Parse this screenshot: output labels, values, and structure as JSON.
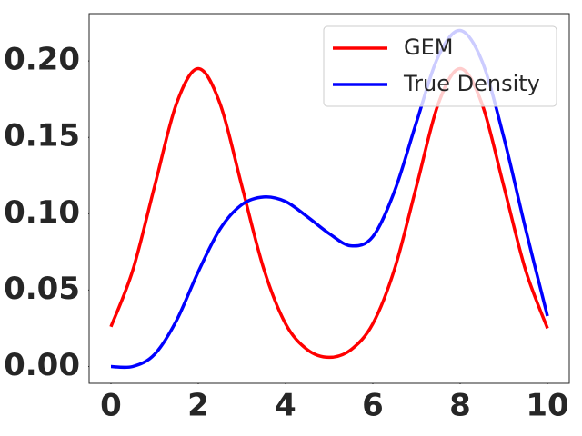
{
  "chart_data": {
    "type": "line",
    "x": [
      0,
      0.5,
      1,
      1.5,
      2,
      2.5,
      3,
      3.5,
      4,
      4.5,
      5,
      5.5,
      6,
      6.5,
      7,
      7.5,
      8,
      8.5,
      9,
      9.5,
      10
    ],
    "series": [
      {
        "name": "GEM",
        "color": "#ff0000",
        "values": [
          0.026,
          0.063,
          0.118,
          0.172,
          0.195,
          0.172,
          0.118,
          0.064,
          0.028,
          0.011,
          0.006,
          0.011,
          0.028,
          0.064,
          0.118,
          0.172,
          0.195,
          0.172,
          0.118,
          0.063,
          0.025
        ]
      },
      {
        "name": "True Density",
        "color": "#0000ff",
        "values": [
          0,
          0,
          0.008,
          0.03,
          0.062,
          0.09,
          0.106,
          0.111,
          0.108,
          0.098,
          0.087,
          0.079,
          0.085,
          0.115,
          0.16,
          0.203,
          0.22,
          0.2,
          0.15,
          0.09,
          0.033
        ]
      }
    ],
    "xlim": [
      -0.5,
      10.5
    ],
    "ylim": [
      -0.011,
      0.231
    ],
    "xticks": [
      0,
      2,
      4,
      6,
      8,
      10
    ],
    "yticks": [
      {
        "value": 0,
        "label": "0.00"
      },
      {
        "value": 0.05,
        "label": "0.05"
      },
      {
        "value": 0.1,
        "label": "0.10"
      },
      {
        "value": 0.15,
        "label": "0.15"
      },
      {
        "value": 0.2,
        "label": "0.20"
      }
    ],
    "legend": "upper right",
    "grid": false
  }
}
